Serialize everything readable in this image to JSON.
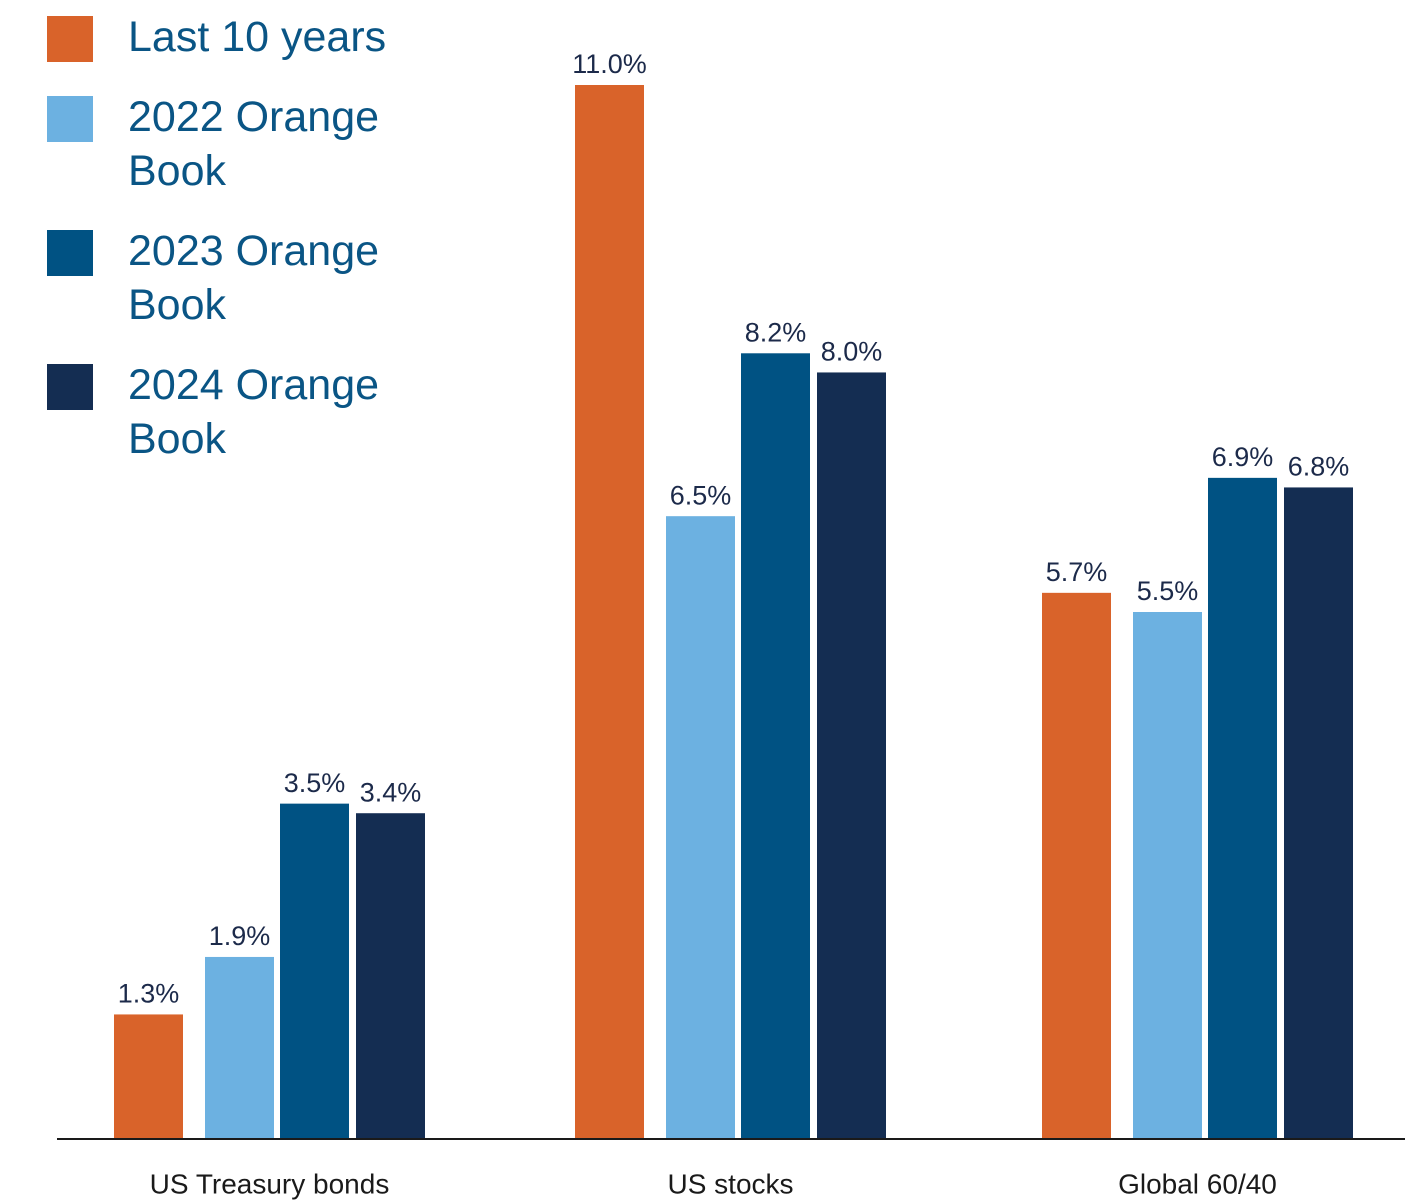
{
  "chart_data": {
    "type": "bar",
    "categories": [
      "US Treasury bonds",
      "US stocks",
      "Global 60/40"
    ],
    "series": [
      {
        "name": "Last 10 years",
        "color": "#d9632a",
        "values": [
          1.3,
          11.0,
          5.7
        ],
        "value_labels": [
          "1.3%",
          "11.0%",
          "5.7%"
        ]
      },
      {
        "name": "2022 Orange Book",
        "color": "#6cb1e1",
        "values": [
          1.9,
          6.5,
          5.5
        ],
        "value_labels": [
          "1.9%",
          "6.5%",
          "5.5%"
        ]
      },
      {
        "name": "2023 Orange Book",
        "color": "#005283",
        "values": [
          3.5,
          8.2,
          6.9
        ],
        "value_labels": [
          "3.5%",
          "8.2%",
          "6.9%"
        ]
      },
      {
        "name": "2024 Orange Book",
        "color": "#142d52",
        "values": [
          3.4,
          8.0,
          6.8
        ],
        "value_labels": [
          "3.4%",
          "8.0%",
          "6.8%"
        ]
      }
    ],
    "ylim": [
      0,
      11
    ],
    "legend": "upper left"
  }
}
